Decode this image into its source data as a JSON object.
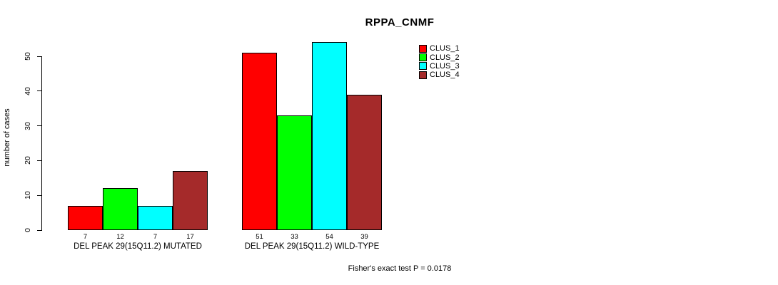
{
  "chart_data": {
    "type": "bar",
    "title": "RPPA_CNMF",
    "ylabel": "number of cases",
    "xlabel": "",
    "ylim": [
      0,
      50
    ],
    "yticks": [
      0,
      10,
      20,
      30,
      40,
      50
    ],
    "grid": false,
    "legend_position": "top-right",
    "categories": [
      "DEL PEAK 29(15Q11.2) MUTATED",
      "DEL PEAK 29(15Q11.2) WILD-TYPE"
    ],
    "series": [
      {
        "name": "CLUS_1",
        "color": "#ff0000",
        "values": [
          7,
          51
        ]
      },
      {
        "name": "CLUS_2",
        "color": "#00ff00",
        "values": [
          12,
          33
        ]
      },
      {
        "name": "CLUS_3",
        "color": "#00ffff",
        "values": [
          7,
          54
        ]
      },
      {
        "name": "CLUS_4",
        "color": "#a52a2a",
        "values": [
          17,
          39
        ]
      }
    ],
    "bar_value_labels": [
      [
        7,
        12,
        7,
        17
      ],
      [
        51,
        33,
        54,
        39
      ]
    ],
    "annotation": "Fisher's exact test P = 0.0178"
  }
}
